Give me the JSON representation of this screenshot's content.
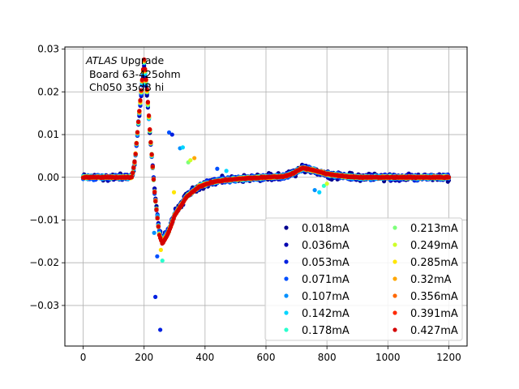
{
  "chart_data": {
    "type": "scatter",
    "annotation": {
      "line1_italic": "ATLAS",
      "line1_rest": " Upgrade",
      "line2": " Board 63-425ohm",
      "line3": " Ch050 35dB hi"
    },
    "xlim": [
      -60,
      1260
    ],
    "ylim": [
      -0.0395,
      0.0305
    ],
    "xticks": [
      0,
      200,
      400,
      600,
      800,
      1000,
      1200
    ],
    "xtick_labels": [
      "0",
      "200",
      "400",
      "600",
      "800",
      "1000",
      "1200"
    ],
    "yticks": [
      -0.03,
      -0.02,
      -0.01,
      0.0,
      0.01,
      0.02,
      0.03
    ],
    "ytick_labels": [
      "−0.03",
      "−0.02",
      "−0.01",
      "0.00",
      "0.01",
      "0.02",
      "0.03"
    ],
    "grid": true,
    "legend_placement": "lower-right",
    "legend_columns": 2,
    "series": [
      {
        "name": "0.018mA",
        "color": "#00008f",
        "amplitude": 0.026,
        "noise": 0.0012
      },
      {
        "name": "0.036mA",
        "color": "#0000b0",
        "amplitude": 0.0262,
        "noise": 0.001
      },
      {
        "name": "0.053mA",
        "color": "#0020e0",
        "amplitude": 0.0265,
        "noise": 0.0009
      },
      {
        "name": "0.071mA",
        "color": "#0050ff",
        "amplitude": 0.0266,
        "noise": 0.0008
      },
      {
        "name": "0.107mA",
        "color": "#0090ff",
        "amplitude": 0.0268,
        "noise": 0.0006
      },
      {
        "name": "0.142mA",
        "color": "#00d5ff",
        "amplitude": 0.0269,
        "noise": 0.0005
      },
      {
        "name": "0.178mA",
        "color": "#29ffce",
        "amplitude": 0.027,
        "noise": 0.0004
      },
      {
        "name": "0.213mA",
        "color": "#7dff7a",
        "amplitude": 0.0271,
        "noise": 0.0004
      },
      {
        "name": "0.249mA",
        "color": "#ceff29",
        "amplitude": 0.0272,
        "noise": 0.0003
      },
      {
        "name": "0.285mA",
        "color": "#ffe600",
        "amplitude": 0.0272,
        "noise": 0.0003
      },
      {
        "name": "0.32mA",
        "color": "#ffa700",
        "amplitude": 0.0273,
        "noise": 0.0003
      },
      {
        "name": "0.356mA",
        "color": "#ff6800",
        "amplitude": 0.0274,
        "noise": 0.0002
      },
      {
        "name": "0.391mA",
        "color": "#ff2900",
        "amplitude": 0.0275,
        "noise": 0.0002
      },
      {
        "name": "0.427mA",
        "color": "#d40000",
        "amplitude": 0.0276,
        "noise": 0.0002
      }
    ],
    "pulse_shape": {
      "x": [
        0,
        160,
        170,
        185,
        200,
        210,
        220,
        235,
        250,
        260,
        280,
        300,
        340,
        380,
        420,
        460,
        520,
        600,
        660,
        690,
        720,
        760,
        800,
        850,
        900,
        1200
      ],
      "y": [
        0,
        0,
        0.004,
        0.016,
        0.0275,
        0.02,
        0.01,
        -0.004,
        -0.0135,
        -0.0155,
        -0.013,
        -0.009,
        -0.0045,
        -0.0022,
        -0.0012,
        -0.0007,
        -0.0003,
        0.0,
        0.0002,
        0.001,
        0.0022,
        0.0016,
        0.0008,
        0.0003,
        0.0,
        0.0
      ]
    },
    "outliers": [
      {
        "x": 237,
        "y": -0.028,
        "color": "#0020e0"
      },
      {
        "x": 253,
        "y": -0.0357,
        "color": "#0020e0"
      },
      {
        "x": 282,
        "y": 0.0105,
        "color": "#0050ff"
      },
      {
        "x": 292,
        "y": 0.01,
        "color": "#0020e0"
      },
      {
        "x": 318,
        "y": 0.0068,
        "color": "#0090ff"
      },
      {
        "x": 327,
        "y": 0.007,
        "color": "#00d5ff"
      },
      {
        "x": 260,
        "y": -0.0195,
        "color": "#29ffce"
      },
      {
        "x": 255,
        "y": -0.017,
        "color": "#ffe600"
      },
      {
        "x": 233,
        "y": -0.013,
        "color": "#0090ff"
      },
      {
        "x": 243,
        "y": -0.0185,
        "color": "#0050ff"
      },
      {
        "x": 345,
        "y": 0.0035,
        "color": "#7dff7a"
      },
      {
        "x": 352,
        "y": 0.004,
        "color": "#ceff29"
      },
      {
        "x": 365,
        "y": 0.0045,
        "color": "#ffa700"
      },
      {
        "x": 298,
        "y": -0.0035,
        "color": "#ffe600"
      },
      {
        "x": 760,
        "y": -0.003,
        "color": "#0090ff"
      },
      {
        "x": 775,
        "y": -0.0035,
        "color": "#00d5ff"
      },
      {
        "x": 790,
        "y": -0.002,
        "color": "#29ffce"
      },
      {
        "x": 800,
        "y": -0.0015,
        "color": "#ceff29"
      },
      {
        "x": 440,
        "y": 0.002,
        "color": "#0050ff"
      },
      {
        "x": 470,
        "y": 0.0015,
        "color": "#00d5ff"
      }
    ]
  }
}
